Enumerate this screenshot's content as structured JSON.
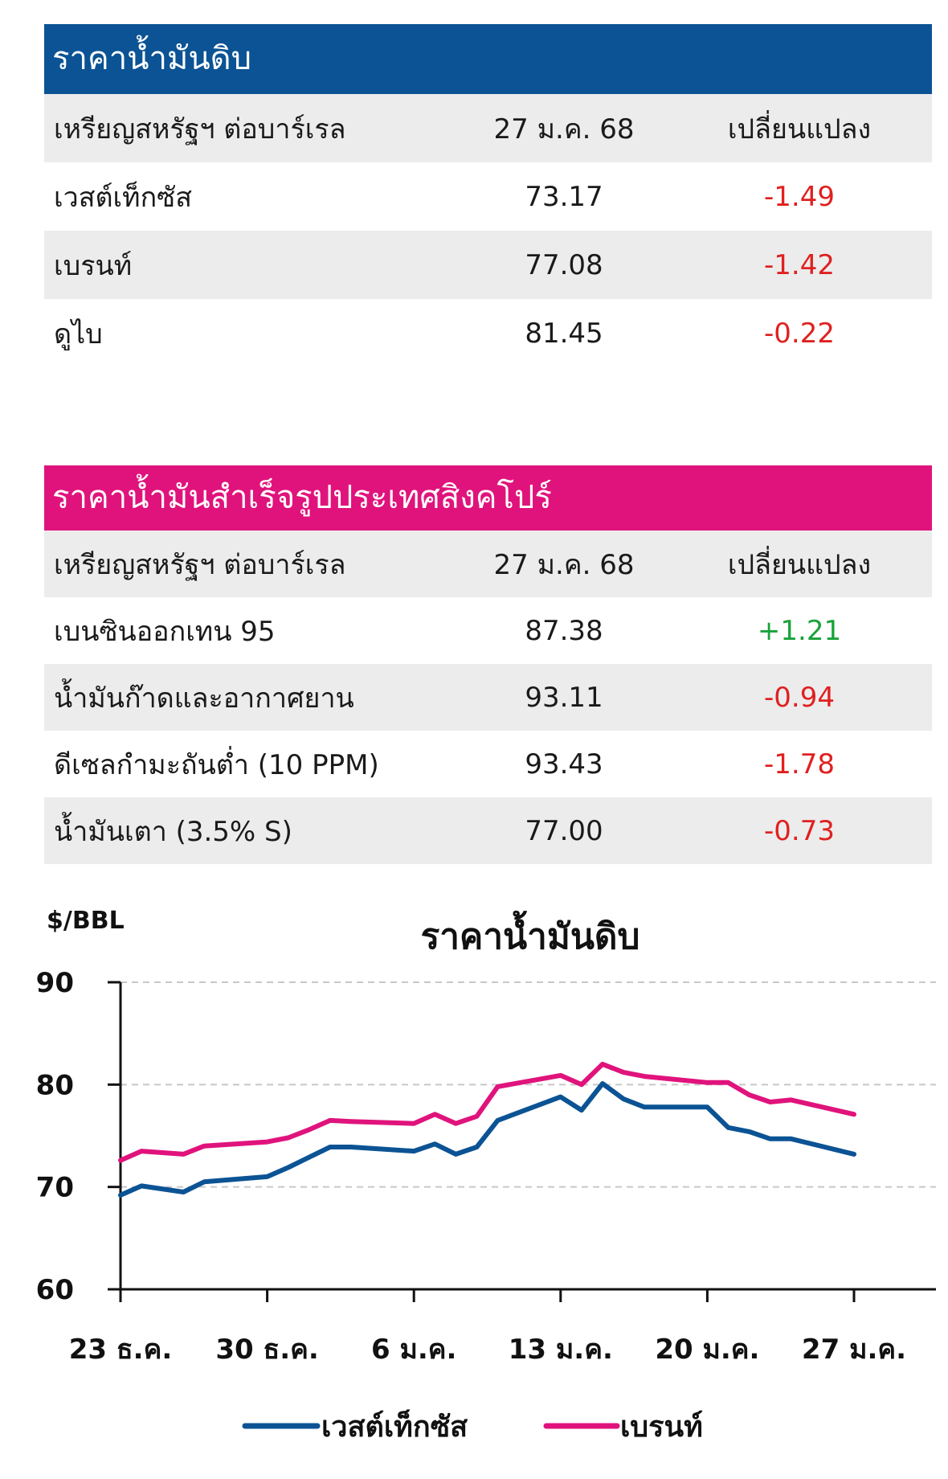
{
  "crude_table": {
    "title": "ราคาน้ำมันดิบ",
    "header": {
      "unit": "เหรียญสหรัฐฯ ต่อบาร์เรล",
      "date": "27 ม.ค. 68",
      "change": "เปลี่ยนแปลง"
    },
    "rows": [
      {
        "name": "เวสต์เท็กซัส",
        "value": "73.17",
        "change": "-1.49"
      },
      {
        "name": "เบรนท์",
        "value": "77.08",
        "change": "-1.42"
      },
      {
        "name": "ดูไบ",
        "value": "81.45",
        "change": "-0.22"
      }
    ]
  },
  "product_table": {
    "title": "ราคาน้ำมันสำเร็จรูปประเทศสิงคโปร์",
    "header": {
      "unit": "เหรียญสหรัฐฯ ต่อบาร์เรล",
      "date": "27 ม.ค. 68",
      "change": "เปลี่ยนแปลง"
    },
    "rows": [
      {
        "name": "เบนซินออกเทน 95",
        "value": "87.38",
        "change": "+1.21"
      },
      {
        "name": "น้ำมันก๊าดและอากาศยาน",
        "value": "93.11",
        "change": "-0.94"
      },
      {
        "name": "ดีเซลกำมะถันต่ำ (10 PPM)",
        "value": "93.43",
        "change": "-1.78"
      },
      {
        "name": "น้ำมันเตา (3.5% S)",
        "value": "77.00",
        "change": "-0.73"
      }
    ]
  },
  "colors": {
    "crude_header": "#0b5394",
    "product_header": "#e0137c",
    "negative": "#e02020",
    "positive": "#19a23a",
    "wti_line": "#0b5394",
    "brent_line": "#e0137c"
  },
  "chart_data": {
    "type": "line",
    "title": "ราคาน้ำมันดิบ",
    "ylabel": "$/BBL",
    "xlabel": "",
    "ylim": [
      60,
      90
    ],
    "y_ticks": [
      60,
      70,
      80,
      90
    ],
    "x_range_days": [
      0,
      35
    ],
    "x_ticks": [
      {
        "day": 0,
        "label": "23 ธ.ค."
      },
      {
        "day": 7,
        "label": "30 ธ.ค."
      },
      {
        "day": 14,
        "label": "6 ม.ค."
      },
      {
        "day": 21,
        "label": "13 ม.ค."
      },
      {
        "day": 28,
        "label": "20 ม.ค."
      },
      {
        "day": 35,
        "label": "27 ม.ค."
      }
    ],
    "grid": "horizontal dashed",
    "legend": "bottom-center",
    "series": [
      {
        "name": "เวสต์เท็กซัส",
        "color": "#0b5394",
        "x": [
          0,
          1,
          3,
          4,
          7,
          8,
          9,
          10,
          11,
          14,
          15,
          16,
          17,
          18,
          21,
          22,
          23,
          24,
          25,
          28,
          29,
          30,
          31,
          32,
          35
        ],
        "y": [
          69.2,
          70.1,
          69.5,
          70.5,
          71.0,
          71.9,
          72.9,
          73.9,
          73.9,
          73.5,
          74.2,
          73.2,
          73.9,
          76.5,
          78.8,
          77.5,
          80.1,
          78.6,
          77.8,
          77.8,
          75.8,
          75.4,
          74.7,
          74.7,
          73.2
        ]
      },
      {
        "name": "เบรนท์",
        "color": "#e0137c",
        "x": [
          0,
          1,
          3,
          4,
          7,
          8,
          9,
          10,
          11,
          14,
          15,
          16,
          17,
          18,
          21,
          22,
          23,
          24,
          25,
          28,
          29,
          30,
          31,
          32,
          35
        ],
        "y": [
          72.6,
          73.5,
          73.2,
          74.0,
          74.4,
          74.8,
          75.6,
          76.5,
          76.4,
          76.2,
          77.1,
          76.2,
          76.9,
          79.8,
          80.9,
          80.0,
          82.0,
          81.2,
          80.8,
          80.2,
          80.2,
          79.0,
          78.3,
          78.5,
          77.1
        ]
      }
    ]
  }
}
